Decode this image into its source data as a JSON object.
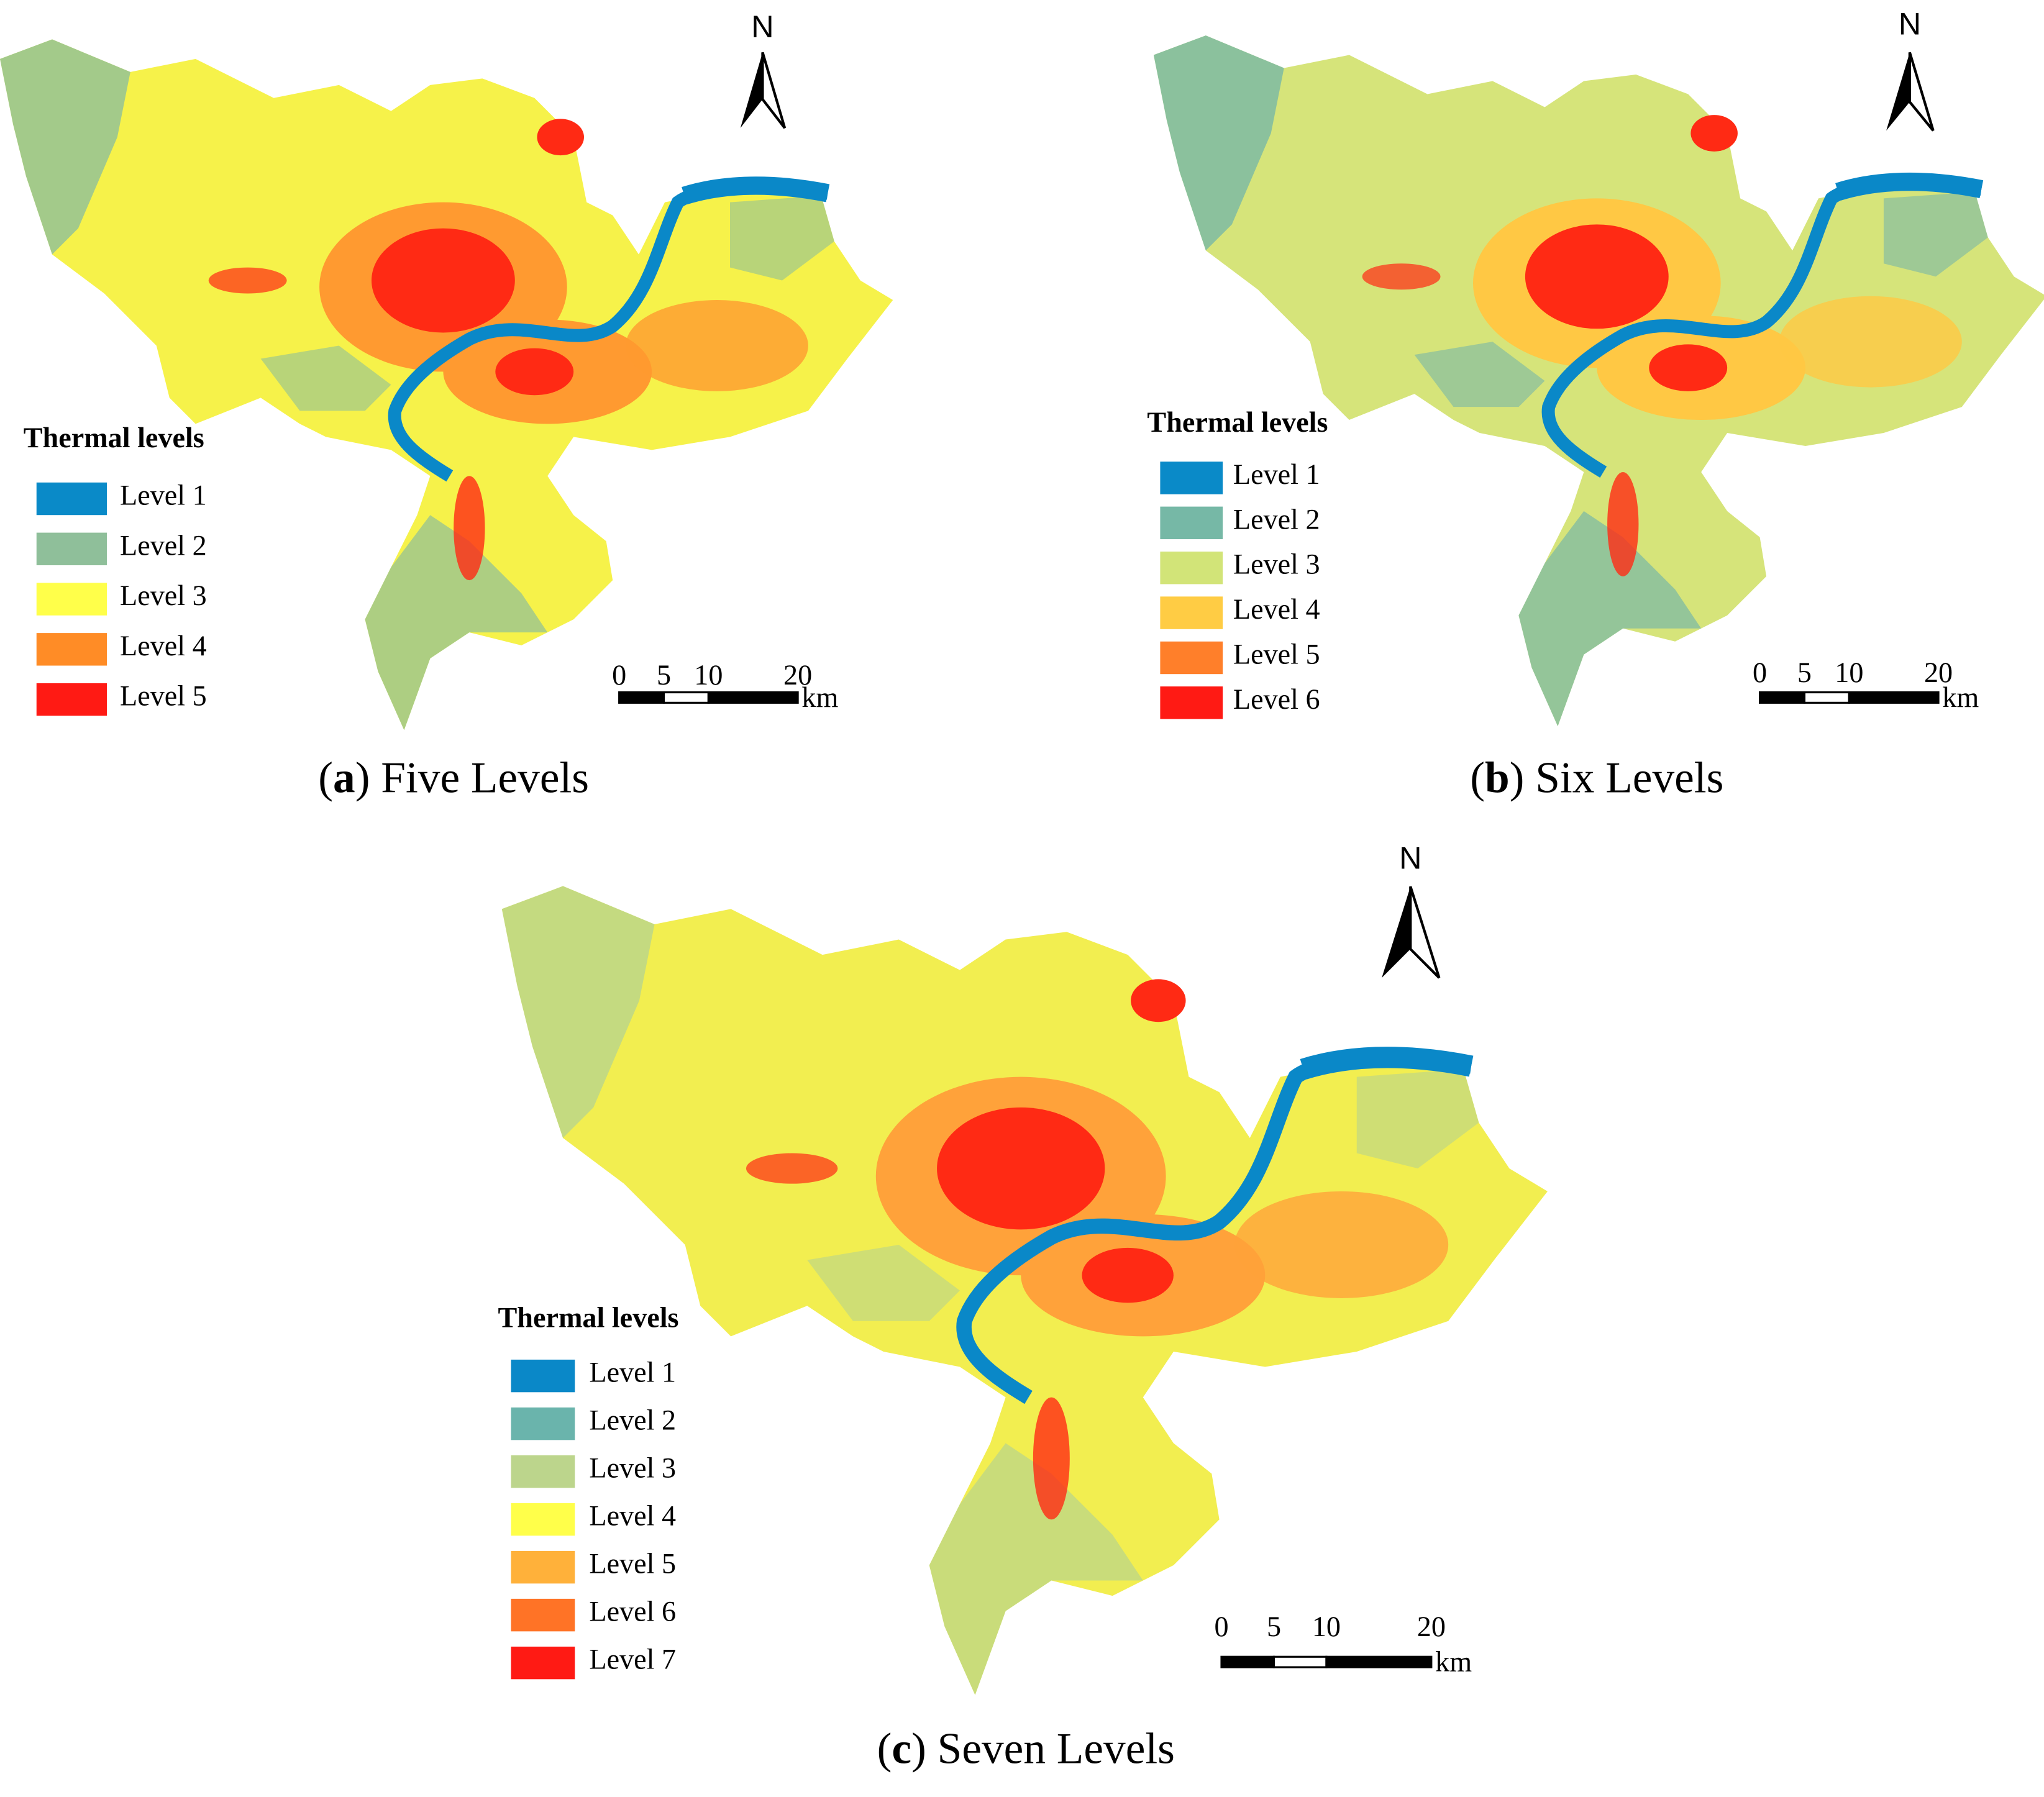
{
  "panels": [
    {
      "north": "N",
      "legend": {
        "title": "Thermal levels",
        "items": [
          {
            "label": "Level 1",
            "color": "#0a8ac8"
          },
          {
            "label": "Level 2",
            "color": "#8fbf9a"
          },
          {
            "label": "Level 3",
            "color": "#ffff4a"
          },
          {
            "label": "Level 4",
            "color": "#ff8c26"
          },
          {
            "label": "Level 5",
            "color": "#ff1a14"
          }
        ]
      },
      "scale_bar": {
        "ticks": [
          0,
          5,
          10,
          20
        ],
        "unit": "km"
      },
      "caption": {
        "open": "(",
        "letter": "a",
        "rest": ") Five Levels"
      }
    },
    {
      "north": "N",
      "legend": {
        "title": "Thermal levels",
        "items": [
          {
            "label": "Level 1",
            "color": "#0a8ac8"
          },
          {
            "label": "Level 2",
            "color": "#76b8a6"
          },
          {
            "label": "Level 3",
            "color": "#d2e478"
          },
          {
            "label": "Level 4",
            "color": "#ffcc44"
          },
          {
            "label": "Level 5",
            "color": "#ff7f2a"
          },
          {
            "label": "Level 6",
            "color": "#ff1a14"
          }
        ]
      },
      "scale_bar": {
        "ticks": [
          0,
          5,
          10,
          20
        ],
        "unit": "km"
      },
      "caption": {
        "open": "(",
        "letter": "b",
        "rest": ") Six Levels"
      }
    },
    {
      "north": "N",
      "legend": {
        "title": "Thermal levels",
        "items": [
          {
            "label": "Level 1",
            "color": "#0a88c8"
          },
          {
            "label": "Level 2",
            "color": "#6ab4ac"
          },
          {
            "label": "Level 3",
            "color": "#bcd58c"
          },
          {
            "label": "Level 4",
            "color": "#ffff4a"
          },
          {
            "label": "Level 5",
            "color": "#ffb13a"
          },
          {
            "label": "Level 6",
            "color": "#ff7326"
          },
          {
            "label": "Level 7",
            "color": "#ff1a14"
          }
        ]
      },
      "scale_bar": {
        "ticks": [
          0,
          5,
          10,
          20
        ],
        "unit": "km"
      },
      "caption": {
        "open": "(",
        "letter": "c",
        "rest": ") Seven Levels"
      }
    }
  ]
}
